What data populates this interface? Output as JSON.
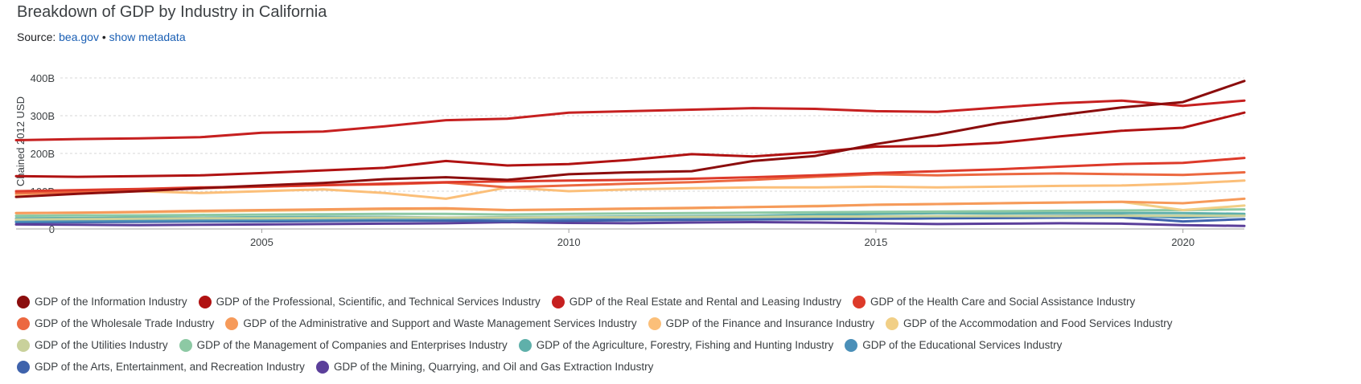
{
  "header": {
    "title": "Breakdown of GDP by Industry in California",
    "source_prefix": "Source:",
    "source_link": "bea.gov",
    "separator": "•",
    "metadata_link": "show metadata"
  },
  "chart_data": {
    "type": "line",
    "title": "Breakdown of GDP by Industry in California",
    "xlabel": "",
    "ylabel": "Chained 2012 USD",
    "xlim": [
      2001,
      2021
    ],
    "ylim": [
      0,
      400
    ],
    "y_unit": "B",
    "x_ticks": [
      2005,
      2010,
      2015,
      2020
    ],
    "y_ticks": [
      {
        "value": 0,
        "label": "0"
      },
      {
        "value": 100,
        "label": "100B"
      },
      {
        "value": 200,
        "label": "200B"
      },
      {
        "value": 300,
        "label": "300B"
      },
      {
        "value": 400,
        "label": "400B"
      }
    ],
    "grid": true,
    "legend_position": "bottom",
    "x": [
      2001,
      2002,
      2003,
      2004,
      2005,
      2006,
      2007,
      2008,
      2009,
      2010,
      2011,
      2012,
      2013,
      2014,
      2015,
      2016,
      2017,
      2018,
      2019,
      2020,
      2021
    ],
    "series": [
      {
        "name": "GDP of the Information Industry",
        "color": "#8b0d0d",
        "values": [
          85,
          93,
          100,
          108,
          115,
          122,
          132,
          137,
          130,
          145,
          150,
          153,
          180,
          193,
          225,
          250,
          280,
          302,
          322,
          336,
          392
        ]
      },
      {
        "name": "GDP of the Professional, Scientific, and Technical Services Industry",
        "color": "#b01212",
        "values": [
          140,
          138,
          140,
          142,
          148,
          155,
          162,
          180,
          168,
          172,
          183,
          198,
          192,
          203,
          218,
          220,
          228,
          245,
          260,
          268,
          308
        ]
      },
      {
        "name": "GDP of the Real Estate and Rental and Leasing Industry",
        "color": "#c62020",
        "values": [
          235,
          238,
          240,
          243,
          255,
          258,
          272,
          288,
          292,
          308,
          312,
          316,
          320,
          318,
          312,
          310,
          322,
          333,
          340,
          326,
          340
        ]
      },
      {
        "name": "GDP of the Health Care and Social Assistance Industry",
        "color": "#dd3a2a",
        "values": [
          100,
          103,
          106,
          110,
          112,
          116,
          120,
          124,
          126,
          128,
          130,
          133,
          137,
          142,
          148,
          153,
          158,
          165,
          172,
          175,
          188
        ]
      },
      {
        "name": "GDP of the Wholesale Trade Industry",
        "color": "#ec6840",
        "values": [
          95,
          97,
          102,
          108,
          112,
          116,
          118,
          123,
          110,
          115,
          120,
          124,
          130,
          138,
          145,
          142,
          145,
          147,
          145,
          143,
          150
        ]
      },
      {
        "name": "GDP of the Administrative and Support and Waste Management Services Industry",
        "color": "#f69a5a",
        "values": [
          42,
          43,
          45,
          48,
          50,
          52,
          54,
          55,
          50,
          52,
          54,
          56,
          58,
          60,
          64,
          66,
          68,
          70,
          72,
          68,
          80
        ]
      },
      {
        "name": "GDP of the Finance and Insurance Industry",
        "color": "#fbbf79",
        "values": [
          90,
          95,
          100,
          95,
          100,
          105,
          95,
          80,
          110,
          100,
          105,
          108,
          110,
          110,
          112,
          110,
          112,
          114,
          115,
          120,
          128
        ]
      },
      {
        "name": "GDP of the Accommodation and Food Services Industry",
        "color": "#f1cf86",
        "values": [
          42,
          43,
          44,
          46,
          48,
          50,
          52,
          53,
          50,
          51,
          53,
          55,
          58,
          61,
          64,
          66,
          68,
          70,
          72,
          50,
          62
        ]
      },
      {
        "name": "GDP of the Utilities Industry",
        "color": "#c9d19b",
        "values": [
          25,
          26,
          27,
          28,
          28,
          29,
          30,
          30,
          30,
          31,
          31,
          32,
          32,
          33,
          33,
          34,
          34,
          34,
          35,
          35,
          35
        ]
      },
      {
        "name": "GDP of the Management of Companies and Enterprises Industry",
        "color": "#8dc9a4",
        "values": [
          35,
          36,
          36,
          37,
          38,
          39,
          40,
          40,
          38,
          40,
          41,
          42,
          43,
          44,
          45,
          46,
          47,
          48,
          49,
          50,
          52
        ]
      },
      {
        "name": "GDP of the Agriculture, Forestry, Fishing and Hunting Industry",
        "color": "#5fb0aa",
        "values": [
          28,
          29,
          30,
          30,
          31,
          32,
          32,
          30,
          31,
          32,
          33,
          34,
          35,
          38,
          40,
          42,
          41,
          42,
          42,
          42,
          40
        ]
      },
      {
        "name": "GDP of the Educational Services Industry",
        "color": "#4a8fb8",
        "values": [
          20,
          21,
          22,
          23,
          24,
          25,
          26,
          27,
          28,
          28,
          29,
          30,
          30,
          31,
          32,
          33,
          34,
          35,
          36,
          30,
          35
        ]
      },
      {
        "name": "GDP of the Arts, Entertainment, and Recreation Industry",
        "color": "#3f63ac",
        "values": [
          18,
          18,
          19,
          20,
          20,
          21,
          22,
          22,
          21,
          22,
          23,
          24,
          25,
          26,
          27,
          28,
          29,
          30,
          31,
          20,
          26
        ]
      },
      {
        "name": "GDP of the Mining, Quarrying, and Oil and Gas Extraction Industry",
        "color": "#5b3f9a",
        "values": [
          12,
          11,
          10,
          11,
          12,
          13,
          14,
          15,
          18,
          16,
          15,
          17,
          18,
          17,
          15,
          13,
          14,
          15,
          14,
          10,
          8
        ]
      }
    ]
  }
}
